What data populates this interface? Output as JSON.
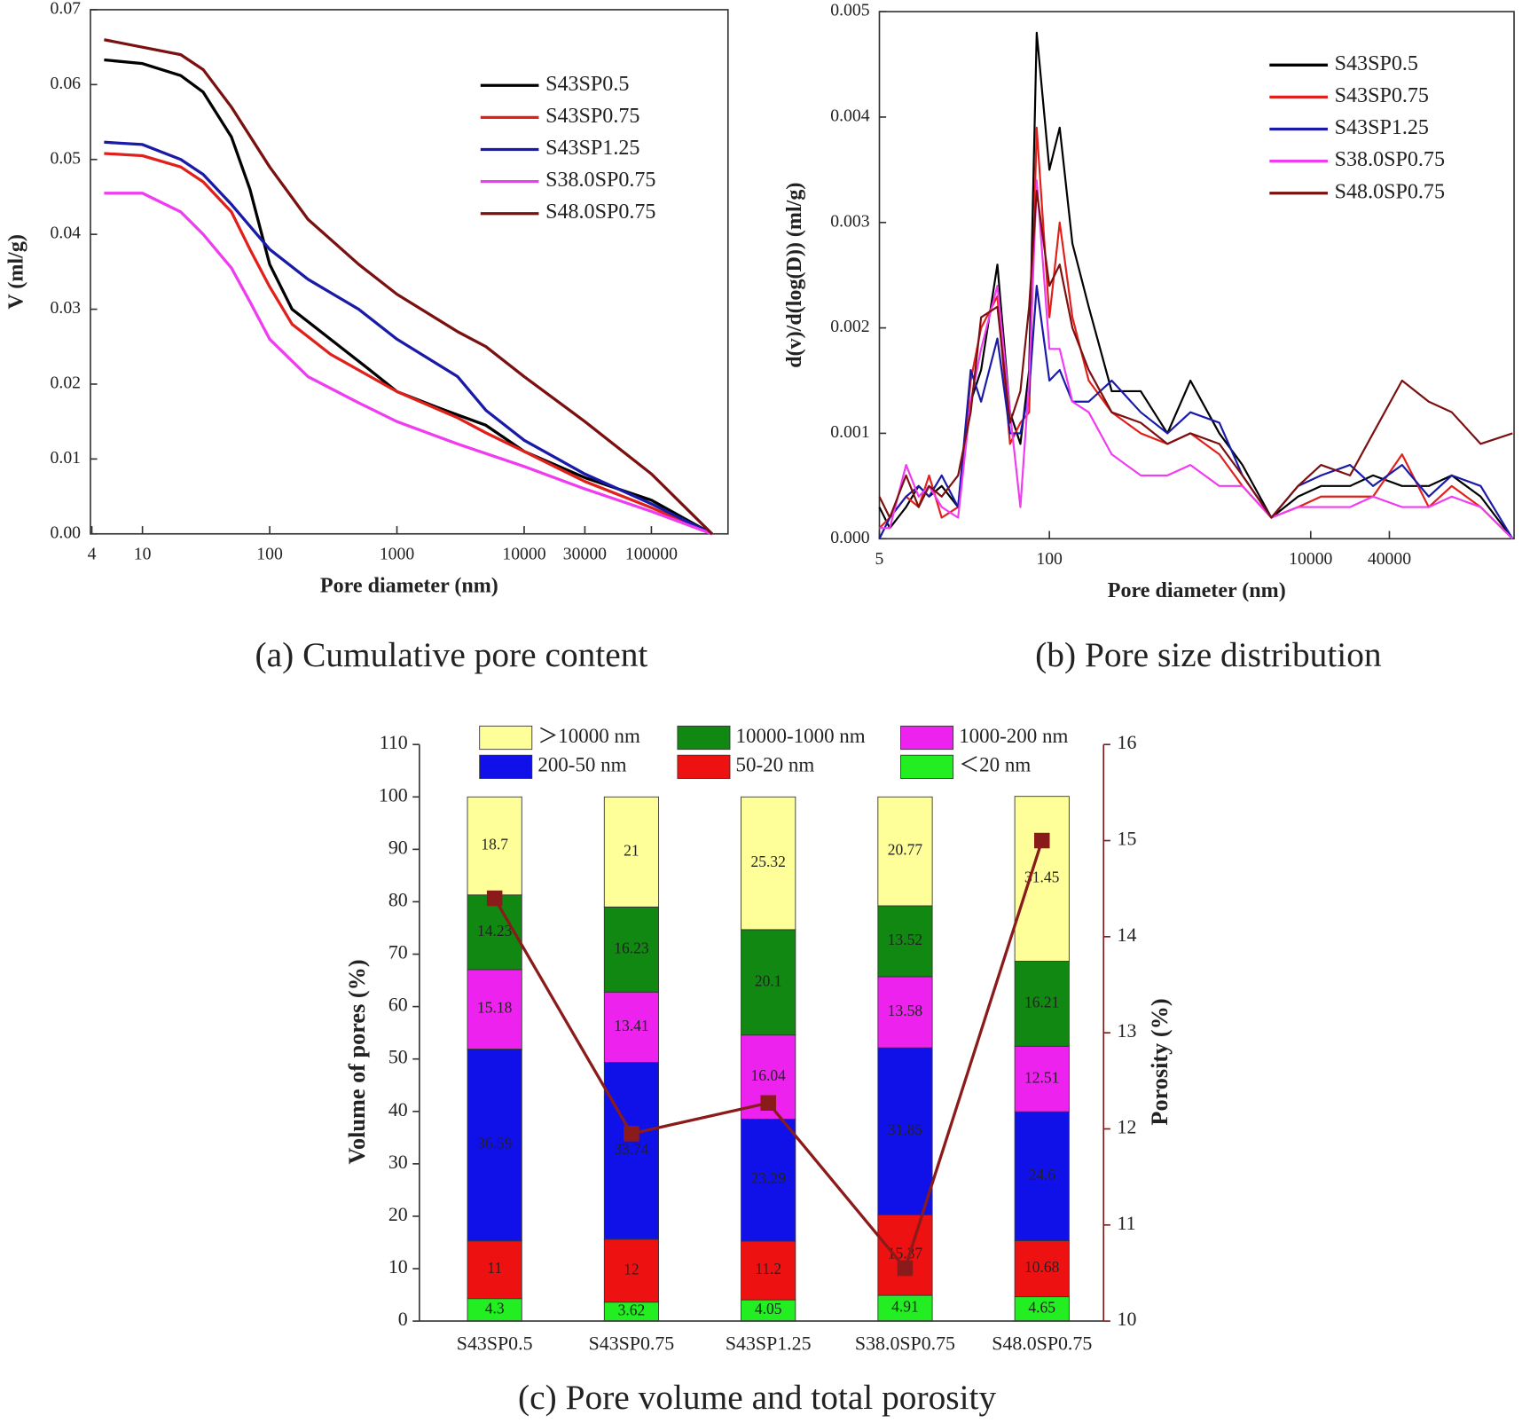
{
  "chart_data": [
    {
      "type": "line",
      "caption": "(a) Cumulative pore content",
      "xlabel": "Pore diameter (nm)",
      "ylabel": "V (ml/g)",
      "xscale": "log",
      "xlim": [
        3.9,
        400000
      ],
      "xticks": [
        4,
        10,
        100,
        1000,
        10000,
        30000,
        100000
      ],
      "ylim": [
        0,
        0.07
      ],
      "yticks": [
        {
          "value": 0,
          "label": "0.00"
        },
        0.01,
        0.02,
        0.03,
        0.04,
        0.05,
        0.06,
        0.07
      ],
      "legend": "upper right",
      "series": [
        {
          "name": "S43SP0.5",
          "color": "#000000",
          "x": [
            5,
            10,
            20,
            30,
            50,
            70,
            100,
            150,
            300,
            600,
            1000,
            2000,
            5000,
            10000,
            30000,
            100000,
            300000
          ],
          "values": [
            0.0633,
            0.0628,
            0.0612,
            0.059,
            0.053,
            0.046,
            0.036,
            0.03,
            0.026,
            0.022,
            0.019,
            0.017,
            0.0145,
            0.011,
            0.0075,
            0.0045,
            0
          ]
        },
        {
          "name": "S43SP0.75",
          "color": "#e0201b",
          "x": [
            5,
            10,
            20,
            30,
            50,
            70,
            100,
            150,
            300,
            1000,
            3000,
            5000,
            10000,
            30000,
            100000,
            300000
          ],
          "values": [
            0.0508,
            0.0505,
            0.049,
            0.047,
            0.043,
            0.038,
            0.033,
            0.028,
            0.024,
            0.019,
            0.0155,
            0.0135,
            0.011,
            0.007,
            0.0035,
            0
          ]
        },
        {
          "name": "S43SP1.25",
          "color": "#1a1aa8",
          "x": [
            5,
            10,
            20,
            30,
            50,
            100,
            200,
            500,
            1000,
            3000,
            5000,
            10000,
            30000,
            100000,
            300000
          ],
          "values": [
            0.0523,
            0.052,
            0.05,
            0.048,
            0.044,
            0.038,
            0.034,
            0.03,
            0.026,
            0.021,
            0.0165,
            0.0125,
            0.008,
            0.004,
            0
          ]
        },
        {
          "name": "S38.0SP0.75",
          "color": "#f03cf0",
          "x": [
            5,
            10,
            20,
            30,
            50,
            70,
            100,
            200,
            500,
            1000,
            3000,
            10000,
            30000,
            100000,
            300000
          ],
          "values": [
            0.0455,
            0.0455,
            0.043,
            0.04,
            0.0355,
            0.031,
            0.026,
            0.021,
            0.0175,
            0.015,
            0.012,
            0.009,
            0.006,
            0.003,
            0
          ]
        },
        {
          "name": "S48.0SP0.75",
          "color": "#7a1010",
          "x": [
            5,
            10,
            20,
            30,
            50,
            100,
            200,
            500,
            1000,
            3000,
            5000,
            10000,
            30000,
            100000,
            300000
          ],
          "values": [
            0.066,
            0.065,
            0.064,
            0.062,
            0.057,
            0.049,
            0.042,
            0.036,
            0.032,
            0.027,
            0.025,
            0.021,
            0.015,
            0.008,
            0
          ]
        }
      ]
    },
    {
      "type": "line",
      "caption": "(b) Pore size distribution",
      "xlabel": "Pore diameter (nm)",
      "ylabel": "d(v)/d(log(D)) (ml/g)",
      "xscale": "log",
      "xlim": [
        5,
        360000
      ],
      "xticks": [
        5,
        100,
        10000,
        40000
      ],
      "ylim": [
        0,
        0.005
      ],
      "yticks": [
        {
          "value": 0,
          "label": "0.000"
        },
        0.001,
        0.002,
        0.003,
        0.004,
        0.005
      ],
      "legend": "upper right",
      "x": [
        5,
        6,
        8,
        10,
        12,
        15,
        20,
        25,
        30,
        40,
        50,
        60,
        70,
        80,
        100,
        120,
        150,
        200,
        300,
        500,
        800,
        1200,
        2000,
        3000,
        5000,
        8000,
        12000,
        20000,
        30000,
        50000,
        80000,
        120000,
        200000,
        350000
      ],
      "series": [
        {
          "name": "S43SP0.5",
          "color": "#000000",
          "values": [
            0.0003,
            0.0001,
            0.0003,
            0.0005,
            0.0004,
            0.0005,
            0.0003,
            0.0013,
            0.0016,
            0.0026,
            0.0012,
            0.0009,
            0.0016,
            0.0048,
            0.0035,
            0.0039,
            0.0028,
            0.0022,
            0.0014,
            0.0014,
            0.001,
            0.0015,
            0.001,
            0.0007,
            0.0002,
            0.0004,
            0.0005,
            0.0005,
            0.0006,
            0.0005,
            0.0005,
            0.0006,
            0.0004,
            0
          ]
        },
        {
          "name": "S43SP0.75",
          "color": "#e0201b",
          "values": [
            0.0001,
            0.0002,
            0.0004,
            0.0003,
            0.0006,
            0.0002,
            0.0003,
            0.0015,
            0.002,
            0.0023,
            0.0009,
            0.0011,
            0.0012,
            0.0039,
            0.0021,
            0.003,
            0.0021,
            0.0015,
            0.0012,
            0.001,
            0.0009,
            0.001,
            0.0008,
            0.0005,
            0.0002,
            0.0003,
            0.0004,
            0.0004,
            0.0004,
            0.0008,
            0.0003,
            0.0005,
            0.0003,
            0
          ]
        },
        {
          "name": "S43SP1.25",
          "color": "#1a1aa8",
          "values": [
            0,
            0.0002,
            0.0004,
            0.0005,
            0.0004,
            0.0006,
            0.0003,
            0.0016,
            0.0013,
            0.0019,
            0.001,
            0.001,
            0.0014,
            0.0024,
            0.0015,
            0.0016,
            0.0013,
            0.0013,
            0.0015,
            0.0012,
            0.001,
            0.0012,
            0.0011,
            0.0006,
            0.0002,
            0.0005,
            0.0006,
            0.0007,
            0.0005,
            0.0007,
            0.0004,
            0.0006,
            0.0005,
            0
          ]
        },
        {
          "name": "S38.0SP0.75",
          "color": "#f03cf0",
          "values": [
            0.0001,
            0.0001,
            0.0007,
            0.0004,
            0.0005,
            0.0003,
            0.0002,
            0.0013,
            0.0018,
            0.0024,
            0.0012,
            0.0003,
            0.0015,
            0.0034,
            0.0018,
            0.0018,
            0.0013,
            0.0012,
            0.0008,
            0.0006,
            0.0006,
            0.0007,
            0.0005,
            0.0005,
            0.0002,
            0.0003,
            0.0003,
            0.0003,
            0.0004,
            0.0003,
            0.0003,
            0.0004,
            0.0003,
            0
          ]
        },
        {
          "name": "S48.0SP0.75",
          "color": "#7a1010",
          "values": [
            0.0004,
            0.0002,
            0.0006,
            0.0003,
            0.0005,
            0.0004,
            0.0006,
            0.0012,
            0.0021,
            0.0022,
            0.0011,
            0.0014,
            0.0022,
            0.0033,
            0.0024,
            0.0026,
            0.002,
            0.0016,
            0.0012,
            0.0011,
            0.0009,
            0.001,
            0.0009,
            0.0006,
            0.0002,
            0.0005,
            0.0007,
            0.0006,
            0.001,
            0.0015,
            0.0013,
            0.0012,
            0.0009,
            0.001
          ]
        }
      ]
    },
    {
      "type": "bar",
      "stacked": true,
      "caption": "(c) Pore volume and total porosity",
      "ylabel": "Volume of pores (%)",
      "y2label": "Porosity (%)",
      "categories": [
        "S43SP0.5",
        "S43SP0.75",
        "S43SP1.25",
        "S38.0SP0.75",
        "S48.0SP0.75"
      ],
      "ylim": [
        0,
        110
      ],
      "yticks": [
        0,
        10,
        20,
        30,
        40,
        50,
        60,
        70,
        80,
        90,
        100,
        110
      ],
      "y2lim": [
        10,
        16
      ],
      "y2ticks": [
        10,
        11,
        12,
        13,
        14,
        15,
        16
      ],
      "legend": "top",
      "series": [
        {
          "name": "＜20 nm",
          "color": "#22ee22",
          "values": [
            4.3,
            3.62,
            4.05,
            4.91,
            4.65
          ]
        },
        {
          "name": "50-20 nm",
          "color": "#ee1111",
          "values": [
            11,
            12,
            11.2,
            15.37,
            10.68
          ]
        },
        {
          "name": "200-50 nm",
          "color": "#1010e8",
          "values": [
            36.59,
            33.74,
            23.29,
            31.85,
            24.6
          ]
        },
        {
          "name": "1000-200 nm",
          "color": "#ee22ee",
          "values": [
            15.18,
            13.41,
            16.04,
            13.58,
            12.51
          ]
        },
        {
          "name": "10000-1000 nm",
          "color": "#118811",
          "values": [
            14.23,
            16.23,
            20.1,
            13.52,
            16.21
          ]
        },
        {
          "name": "＞10000 nm",
          "color": "#ffff99",
          "values": [
            18.7,
            21,
            25.32,
            20.77,
            31.45
          ]
        }
      ],
      "line_series": {
        "axis": "y2",
        "color": "#8b1a1a",
        "values": [
          14.4,
          11.95,
          12.27,
          10.55,
          15.0
        ]
      }
    }
  ]
}
